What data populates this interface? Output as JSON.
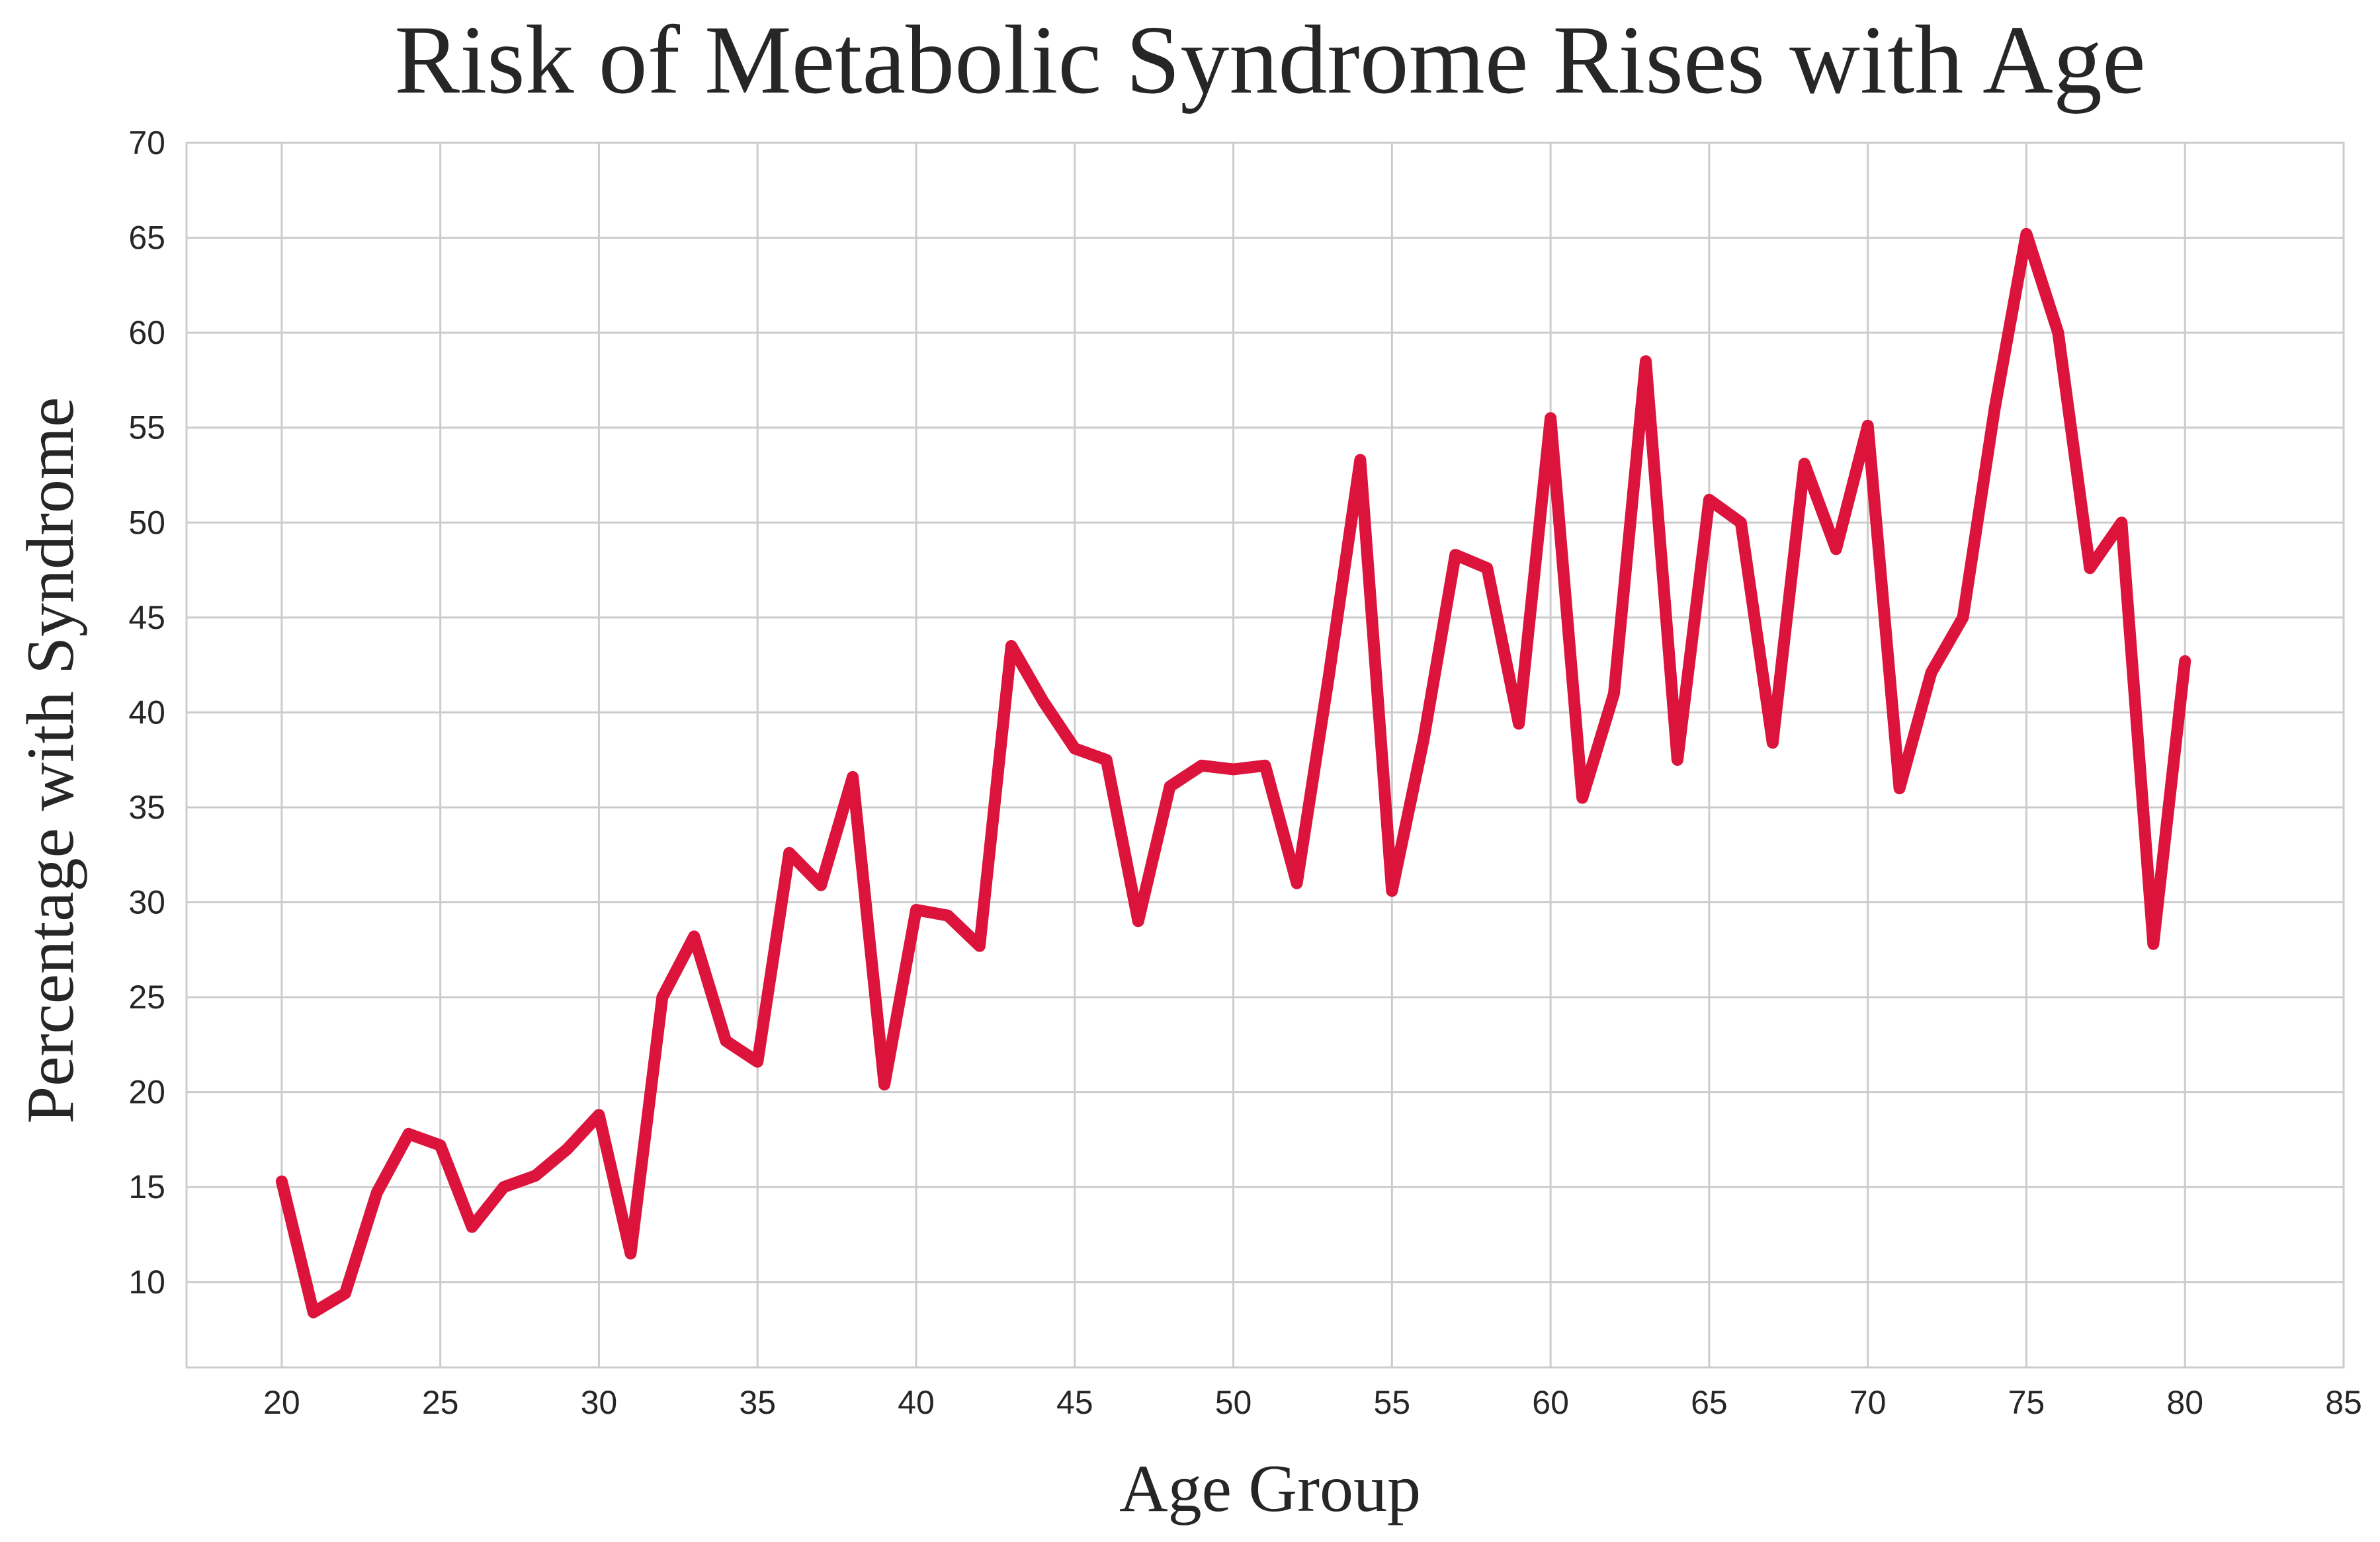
{
  "chart_data": {
    "type": "line",
    "title": "Risk of Metabolic Syndrome Rises with Age",
    "xlabel": "Age Group",
    "ylabel": "Percentage with Syndrome",
    "xlim": [
      17,
      85
    ],
    "ylim": [
      5.5,
      70
    ],
    "xticks": [
      20,
      25,
      30,
      35,
      40,
      45,
      50,
      55,
      60,
      65,
      70,
      75,
      80,
      85
    ],
    "yticks": [
      10,
      15,
      20,
      25,
      30,
      35,
      40,
      45,
      50,
      55,
      60,
      65,
      70
    ],
    "grid": true,
    "line_color": "#dc143c",
    "series": [
      {
        "x": [
          20,
          21,
          22,
          23,
          24,
          25,
          26,
          27,
          28,
          29,
          30,
          31,
          32,
          33,
          34,
          35,
          36,
          37,
          38,
          39,
          40,
          41,
          42,
          43,
          44,
          45,
          46,
          47,
          48,
          49,
          50,
          51,
          52,
          53,
          54,
          55,
          56,
          57,
          58,
          59,
          60,
          61,
          62,
          63,
          64,
          65,
          66,
          67,
          68,
          69,
          70,
          71,
          72,
          73,
          74,
          75,
          76,
          77,
          78,
          79,
          80
        ],
        "y": [
          15.3,
          8.4,
          9.4,
          14.7,
          17.8,
          17.2,
          12.9,
          15.0,
          15.6,
          17.0,
          18.8,
          11.5,
          25.0,
          28.2,
          22.7,
          21.6,
          32.6,
          30.9,
          36.6,
          20.4,
          29.6,
          29.3,
          27.7,
          43.5,
          40.6,
          38.1,
          37.5,
          29.0,
          36.1,
          37.2,
          37.0,
          37.2,
          31.0,
          41.8,
          53.3,
          30.6,
          38.6,
          48.3,
          47.6,
          39.4,
          55.5,
          35.5,
          41.0,
          58.5,
          37.5,
          51.2,
          50.0,
          38.4,
          53.1,
          48.6,
          55.1,
          36.0,
          42.1,
          45.0,
          56.0,
          65.2,
          60.0,
          47.6,
          50.0,
          27.8,
          42.7
        ]
      }
    ]
  }
}
